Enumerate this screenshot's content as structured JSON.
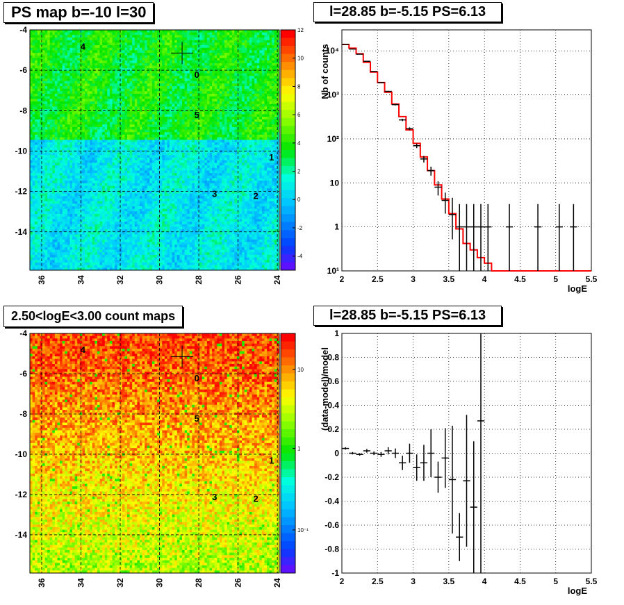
{
  "panels": {
    "tl_title": "PS map b=-10 l=30",
    "tr_title": "l=28.85 b=-5.15 PS=6.13",
    "bl_title": "2.50<logE<3.00 count maps",
    "br_title": "l=28.85 b=-5.15 PS=6.13"
  },
  "colors": {
    "model_line": "#ff0000",
    "data": "#000000"
  },
  "chart_data": [
    {
      "type": "heatmap",
      "title": "PS map b=-10 l=30",
      "xlabel": "",
      "ylabel": "",
      "xlim": [
        36.6,
        23.9
      ],
      "ylim": [
        -15.9,
        -4.0
      ],
      "xticks": [
        "36",
        "34",
        "32",
        "30",
        "28",
        "26",
        "24"
      ],
      "yticks": [
        "-4",
        "-6",
        "-8",
        "-10",
        "-12",
        "-14"
      ],
      "colorbar": {
        "range": [
          -5,
          12
        ],
        "ticks": [
          "12",
          "10",
          "8",
          "6",
          "4",
          "2",
          "0",
          "-2",
          "-4"
        ]
      },
      "source_markers": [
        {
          "label": "4",
          "l": 33.9,
          "b": -4.8
        },
        {
          "label": "0",
          "l": 28.1,
          "b": -6.2
        },
        {
          "label": "5",
          "l": 28.1,
          "b": -8.2
        },
        {
          "label": "1",
          "l": 24.3,
          "b": -10.3
        },
        {
          "label": "3",
          "l": 27.2,
          "b": -12.1
        },
        {
          "label": "2",
          "l": 25.1,
          "b": -12.2
        }
      ],
      "cross": {
        "l": 28.85,
        "b": -5.15
      }
    },
    {
      "type": "line",
      "title": "l=28.85 b=-5.15 PS=6.13",
      "xlabel": "logE",
      "ylabel": "Nb of counts",
      "xlim": [
        2,
        5.5
      ],
      "ylog": true,
      "ylim": [
        0.1,
        30000
      ],
      "xticks": [
        "2",
        "2.5",
        "3",
        "3.5",
        "4",
        "4.5",
        "5",
        "5.5"
      ],
      "yticks": [
        "10¹",
        "1",
        "10",
        "10²",
        "10³",
        "10⁴"
      ],
      "grid": true,
      "model_step": {
        "edges": [
          2.0,
          2.1,
          2.2,
          2.3,
          2.4,
          2.5,
          2.6,
          2.7,
          2.8,
          2.9,
          3.0,
          3.1,
          3.2,
          3.3,
          3.4,
          3.5,
          3.6,
          3.7,
          3.8,
          3.9,
          4.0,
          4.1,
          4.2,
          4.3,
          4.4,
          5.5
        ],
        "values": [
          14000,
          11500,
          8600,
          5500,
          3300,
          1900,
          1150,
          620,
          320,
          160,
          79,
          39,
          19,
          9,
          4.3,
          2.0,
          0.9,
          0.42,
          0.3,
          0.2,
          0.15,
          0.1,
          0.1,
          0.1,
          0.1
        ]
      },
      "data_points": [
        {
          "x": 2.05,
          "y": 14000
        },
        {
          "x": 2.15,
          "y": 11000
        },
        {
          "x": 2.25,
          "y": 8400
        },
        {
          "x": 2.35,
          "y": 5800
        },
        {
          "x": 2.45,
          "y": 3400
        },
        {
          "x": 2.55,
          "y": 1900
        },
        {
          "x": 2.65,
          "y": 1200
        },
        {
          "x": 2.75,
          "y": 600
        },
        {
          "x": 2.85,
          "y": 270
        },
        {
          "x": 2.95,
          "y": 170
        },
        {
          "x": 3.05,
          "y": 70
        },
        {
          "x": 3.15,
          "y": 35
        },
        {
          "x": 3.25,
          "y": 19
        },
        {
          "x": 3.35,
          "y": 8
        },
        {
          "x": 3.45,
          "y": 4.0
        },
        {
          "x": 3.55,
          "y": 1.9
        },
        {
          "x": 3.65,
          "y": 1
        },
        {
          "x": 3.75,
          "y": 1
        },
        {
          "x": 3.85,
          "y": 1
        },
        {
          "x": 3.95,
          "y": 1
        },
        {
          "x": 4.05,
          "y": 1
        },
        {
          "x": 4.35,
          "y": 1
        },
        {
          "x": 4.75,
          "y": 1
        },
        {
          "x": 5.05,
          "y": 1
        },
        {
          "x": 5.25,
          "y": 1
        }
      ]
    },
    {
      "type": "heatmap",
      "title": "2.50<logE<3.00 count maps",
      "xlabel": "",
      "ylabel": "",
      "xlim": [
        36.6,
        23.9
      ],
      "ylim": [
        -15.9,
        -4.0
      ],
      "xticks": [
        "36",
        "34",
        "32",
        "30",
        "28",
        "26",
        "24"
      ],
      "yticks": [
        "-4",
        "-6",
        "-8",
        "-10",
        "-12",
        "-14"
      ],
      "colorbar": {
        "log": true,
        "ticks": [
          "10",
          "1",
          "10⁻¹"
        ]
      }
    },
    {
      "type": "scatter",
      "title": "l=28.85 b=-5.15 PS=6.13",
      "xlabel": "logE",
      "ylabel": "(data-model)/model",
      "xlim": [
        2,
        5.5
      ],
      "ylim": [
        -1,
        1
      ],
      "xticks": [
        "2",
        "2.5",
        "3",
        "3.5",
        "4",
        "4.5",
        "5",
        "5.5"
      ],
      "yticks": [
        "1",
        "0.8",
        "0.6",
        "0.4",
        "0.2",
        "0",
        "-0.2",
        "-0.4",
        "-0.6",
        "-0.8",
        "-1"
      ],
      "grid": true,
      "points": [
        {
          "x": 2.05,
          "y": 0.04,
          "err": 0.01
        },
        {
          "x": 2.15,
          "y": 0.0,
          "err": 0.01
        },
        {
          "x": 2.25,
          "y": -0.01,
          "err": 0.01
        },
        {
          "x": 2.35,
          "y": 0.02,
          "err": 0.015
        },
        {
          "x": 2.45,
          "y": 0.0,
          "err": 0.015
        },
        {
          "x": 2.55,
          "y": -0.01,
          "err": 0.02
        },
        {
          "x": 2.65,
          "y": 0.02,
          "err": 0.03
        },
        {
          "x": 2.75,
          "y": 0.0,
          "err": 0.04
        },
        {
          "x": 2.85,
          "y": -0.08,
          "err": 0.06
        },
        {
          "x": 2.95,
          "y": 0.0,
          "err": 0.08
        },
        {
          "x": 3.05,
          "y": -0.12,
          "err": 0.11
        },
        {
          "x": 3.15,
          "y": -0.08,
          "err": 0.15
        },
        {
          "x": 3.25,
          "y": 0.0,
          "err": 0.2
        },
        {
          "x": 3.35,
          "y": -0.2,
          "err": 0.13
        },
        {
          "x": 3.45,
          "y": -0.04,
          "err": 0.25
        },
        {
          "x": 3.55,
          "y": -0.22,
          "err": 0.45
        },
        {
          "x": 3.65,
          "y": -0.7,
          "err": 0.2
        },
        {
          "x": 3.75,
          "y": -0.23,
          "err": 0.55
        },
        {
          "x": 3.85,
          "y": -0.45,
          "err": 0.55
        },
        {
          "x": 3.95,
          "y": 0.27,
          "err": 1.3
        }
      ]
    }
  ]
}
